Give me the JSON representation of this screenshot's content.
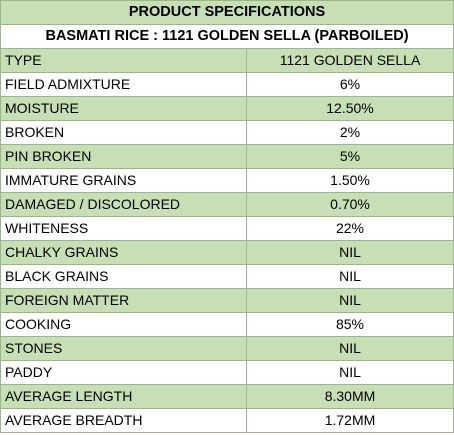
{
  "header": {
    "title": "PRODUCT SPECIFICATIONS",
    "subtitle": "BASMATI RICE : 1121 GOLDEN SELLA (PARBOILED)"
  },
  "specs": [
    {
      "param": "TYPE",
      "value": "1121 GOLDEN SELLA"
    },
    {
      "param": "FIELD ADMIXTURE",
      "value": "6%"
    },
    {
      "param": "MOISTURE",
      "value": "12.50%"
    },
    {
      "param": "BROKEN",
      "value": "2%"
    },
    {
      "param": "PIN BROKEN",
      "value": "5%"
    },
    {
      "param": "IMMATURE GRAINS",
      "value": "1.50%"
    },
    {
      "param": "DAMAGED / DISCOLORED",
      "value": "0.70%"
    },
    {
      "param": "WHITENESS",
      "value": "22%"
    },
    {
      "param": "CHALKY GRAINS",
      "value": "NIL"
    },
    {
      "param": "BLACK GRAINS",
      "value": "NIL"
    },
    {
      "param": "FOREIGN MATTER",
      "value": "NIL"
    },
    {
      "param": "COOKING",
      "value": "85%"
    },
    {
      "param": "STONES",
      "value": "NIL"
    },
    {
      "param": "PADDY",
      "value": "NIL"
    },
    {
      "param": "AVERAGE LENGTH",
      "value": "8.30MM"
    },
    {
      "param": "AVERAGE BREADTH",
      "value": "1.72MM"
    }
  ],
  "colors": {
    "band_green": "#c6dfb4",
    "band_white": "#ffffff",
    "grid_line": "#9eb58c"
  }
}
